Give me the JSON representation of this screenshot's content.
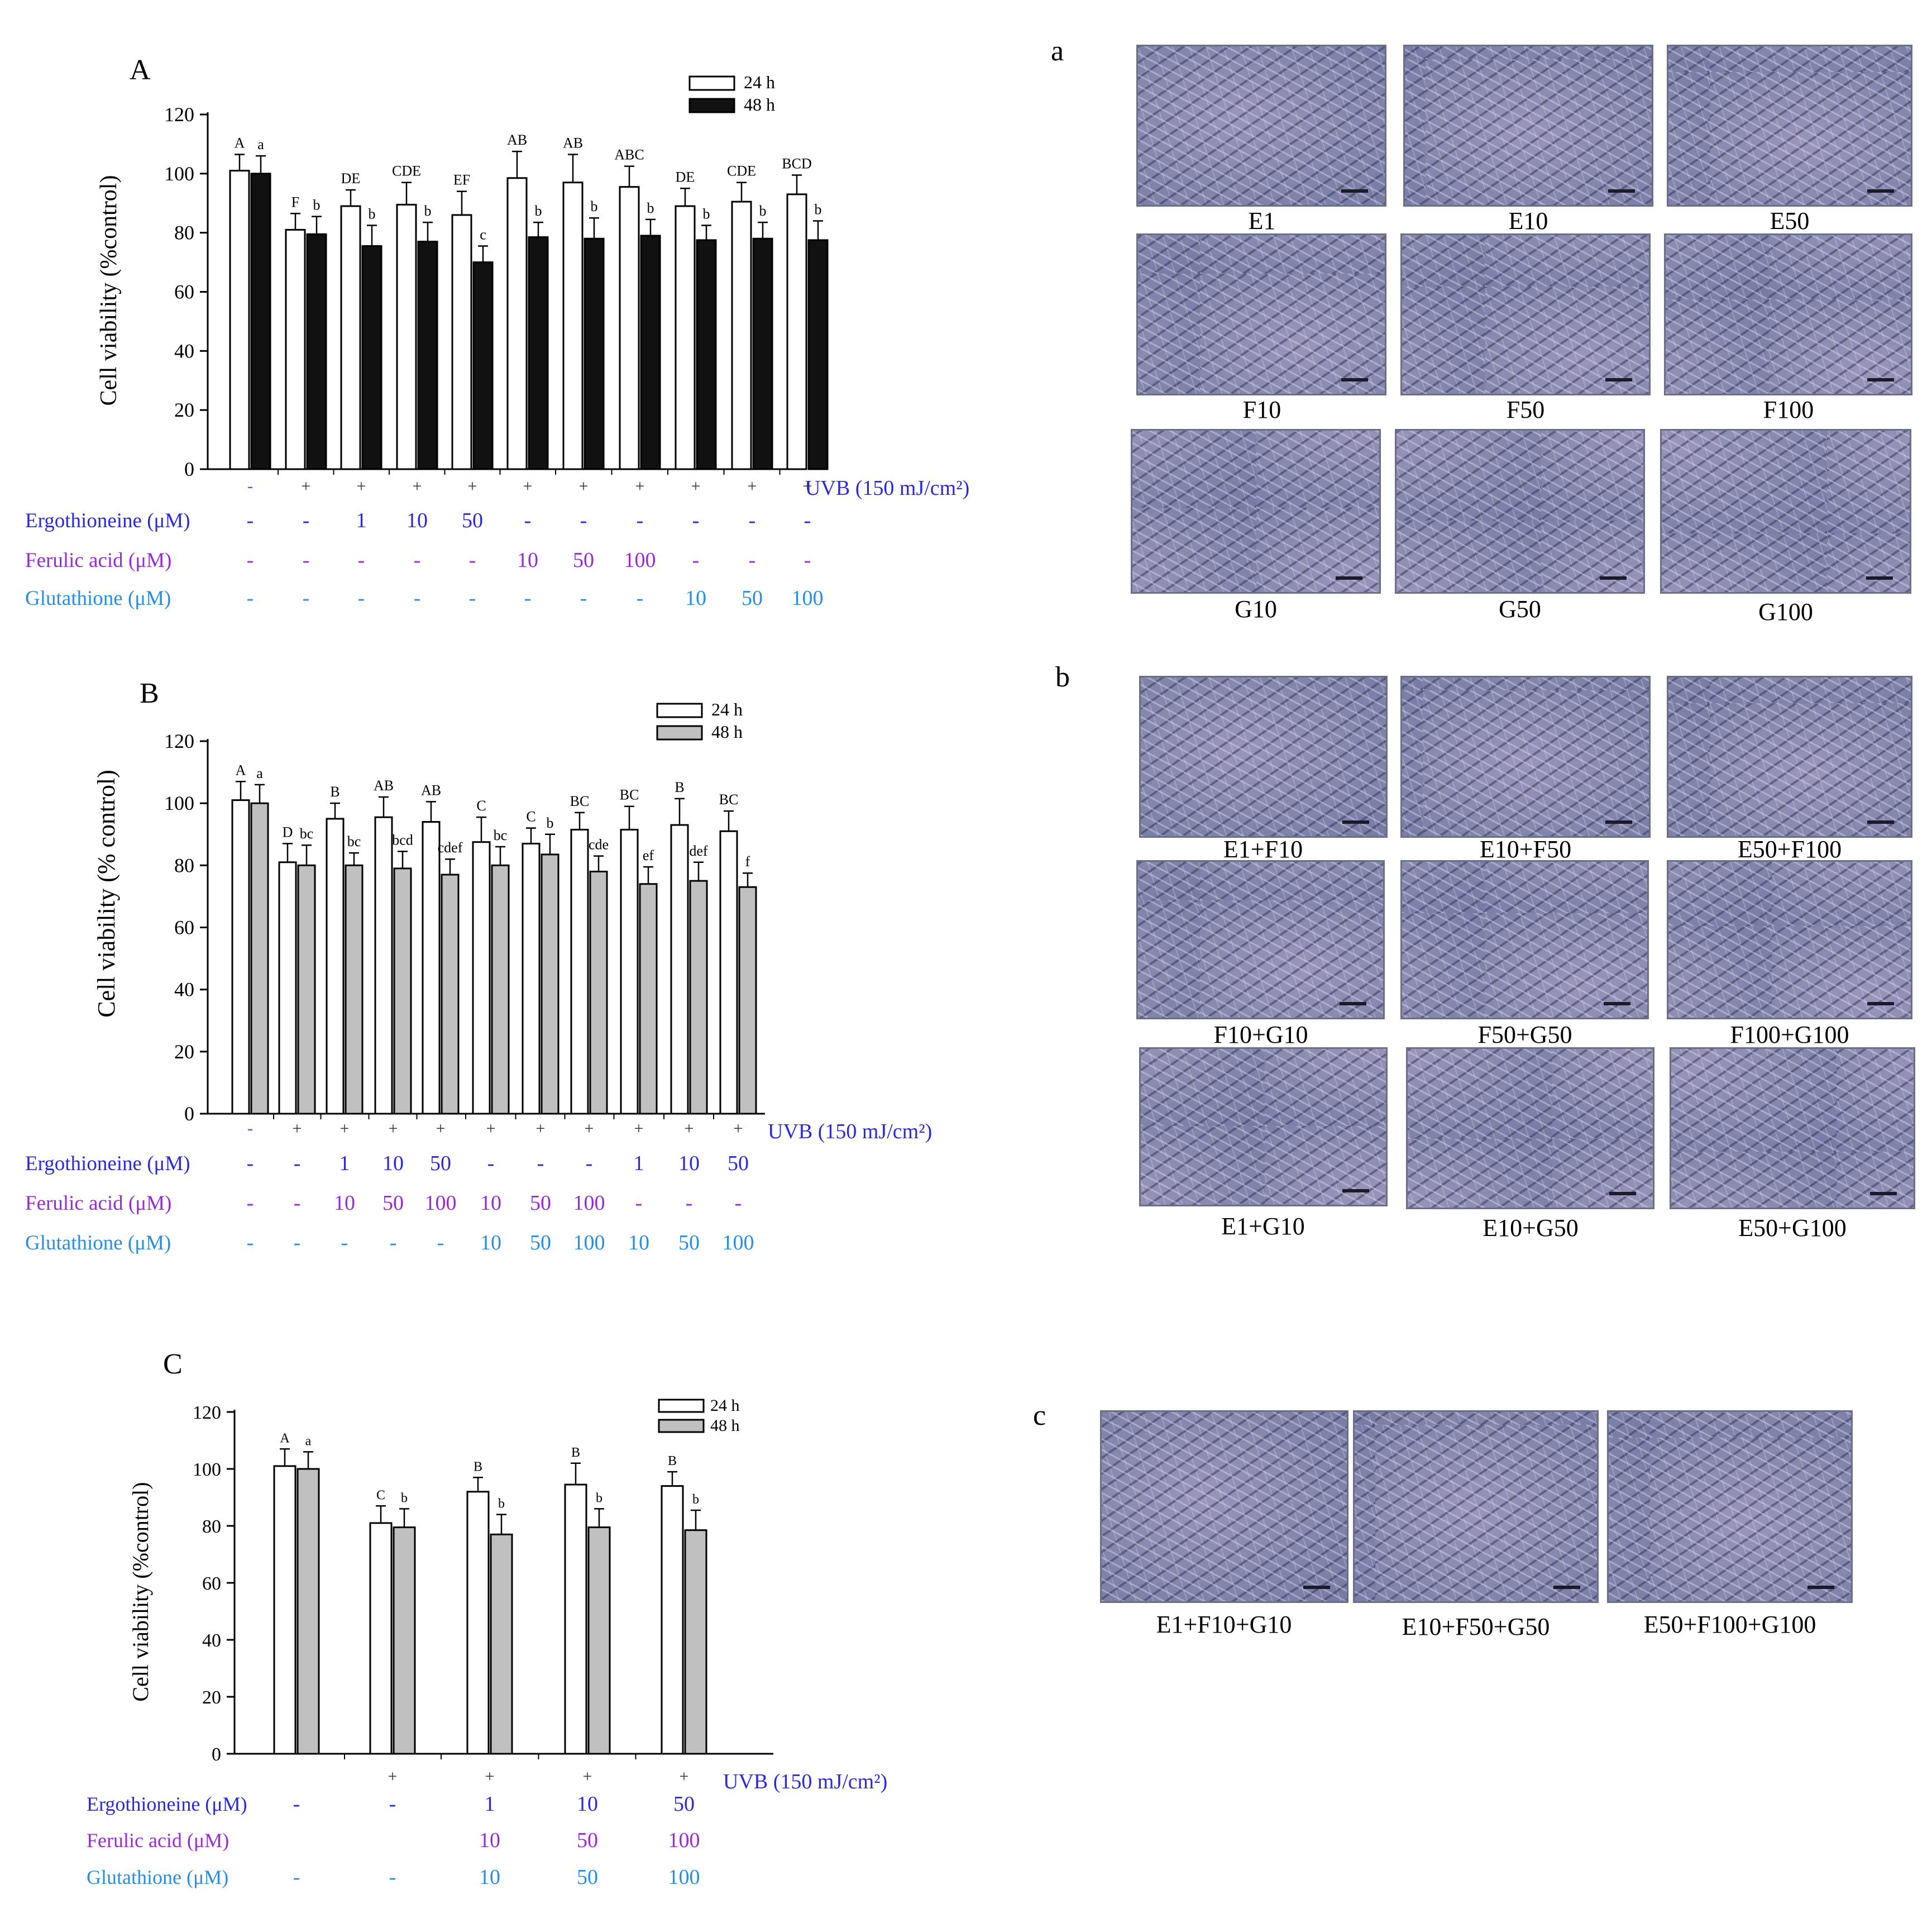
{
  "charts": [
    {
      "letter": "A",
      "ylabel": "Cell viability (%control)",
      "yticks": [
        "0",
        "20",
        "40",
        "60",
        "80",
        "100",
        "120"
      ],
      "legend": [
        "24 h",
        "48 h"
      ],
      "uvb_label": "UVB (150 mJ/cm²)",
      "uvb_marks": [
        "-",
        "+",
        "+",
        "+",
        "+",
        "+",
        "+",
        "+",
        "+",
        "+",
        "+"
      ],
      "rows": [
        {
          "label": "Ergothioneine (μM)",
          "color": "#2a2ad8",
          "cells": [
            "-",
            "-",
            "1",
            "10",
            "50",
            "-",
            "-",
            "-",
            "-",
            "-",
            "-"
          ]
        },
        {
          "label": "Ferulic acid (μM)",
          "color": "#9a2ad8",
          "cells": [
            "-",
            "-",
            "-",
            "-",
            "-",
            "10",
            "50",
            "100",
            "-",
            "-",
            "-"
          ]
        },
        {
          "label": "Glutathione (μM)",
          "color": "#2a8ee0",
          "cells": [
            "-",
            "-",
            "-",
            "-",
            "-",
            "-",
            "-",
            "-",
            "10",
            "50",
            "100"
          ]
        }
      ]
    },
    {
      "letter": "B",
      "ylabel": "Cell viability (% control)",
      "yticks": [
        "0",
        "20",
        "40",
        "60",
        "80",
        "100",
        "120"
      ],
      "legend": [
        "24 h",
        "48 h"
      ],
      "uvb_label": "UVB (150 mJ/cm²)",
      "uvb_marks": [
        "-",
        "+",
        "+",
        "+",
        "+",
        "+",
        "+",
        "+",
        "+",
        "+",
        "+"
      ],
      "rows": [
        {
          "label": "Ergothioneine (μM)",
          "color": "#2a2ad8",
          "cells": [
            "-",
            "-",
            "1",
            "10",
            "50",
            "-",
            "-",
            "-",
            "1",
            "10",
            "50"
          ]
        },
        {
          "label": "Ferulic acid (μM)",
          "color": "#9a2ad8",
          "cells": [
            "-",
            "-",
            "10",
            "50",
            "100",
            "10",
            "50",
            "100",
            "-",
            "-",
            "-"
          ]
        },
        {
          "label": "Glutathione (μM)",
          "color": "#2a8ee0",
          "cells": [
            "-",
            "-",
            "-",
            "-",
            "-",
            "10",
            "50",
            "100",
            "10",
            "50",
            "100"
          ]
        }
      ]
    },
    {
      "letter": "C",
      "ylabel": "Cell viability (%control)",
      "yticks": [
        "0",
        "20",
        "40",
        "60",
        "80",
        "100",
        "120"
      ],
      "legend": [
        "24 h",
        "48 h"
      ],
      "uvb_label": "UVB (150 mJ/cm²)",
      "uvb_marks": [
        "",
        "+",
        "+",
        "+",
        "+"
      ],
      "rows": [
        {
          "label": "Ergothioneine (μM)",
          "color": "#2a2ad8",
          "cells": [
            "-",
            "-",
            "1",
            "10",
            "50"
          ]
        },
        {
          "label": "Ferulic acid  (μM)",
          "color": "#9a2ad8",
          "cells": [
            "",
            "",
            "10",
            "50",
            "100"
          ]
        },
        {
          "label": "Glutathione (μM)",
          "color": "#2a8ee0",
          "cells": [
            "-",
            "-",
            "10",
            "50",
            "100"
          ]
        }
      ]
    }
  ],
  "chart_data": [
    {
      "type": "bar",
      "title": "A",
      "ylabel": "Cell viability (%control)",
      "ylim": [
        0,
        120
      ],
      "series": [
        {
          "name": "24 h",
          "color": "#ffffff",
          "values": [
            101,
            81,
            89,
            89.5,
            86,
            98.5,
            97,
            95.5,
            89,
            90.5,
            93
          ],
          "errors": [
            5.5,
            5.5,
            5.5,
            7.5,
            8,
            9,
            9.5,
            7,
            6,
            6.5,
            6.5
          ],
          "letters": [
            "A",
            "F",
            "DE",
            "CDE",
            "EF",
            "AB",
            "AB",
            "ABC",
            "DE",
            "CDE",
            "BCD"
          ]
        },
        {
          "name": "48 h",
          "color": "#111111",
          "values": [
            100,
            79.5,
            75.5,
            77,
            70,
            78.5,
            78,
            79,
            77.5,
            78,
            77.5
          ],
          "errors": [
            6,
            6,
            7,
            6.5,
            5.5,
            5,
            7,
            5.5,
            5,
            5.5,
            6.5
          ],
          "letters": [
            "a",
            "b",
            "b",
            "b",
            "c",
            "b",
            "b",
            "b",
            "b",
            "b",
            "b"
          ]
        }
      ]
    },
    {
      "type": "bar",
      "title": "B",
      "ylabel": "Cell viability (% control)",
      "ylim": [
        0,
        120
      ],
      "series": [
        {
          "name": "24 h",
          "color": "#ffffff",
          "values": [
            101,
            81,
            95,
            95.5,
            94,
            87.5,
            87,
            91.5,
            91.5,
            93,
            91
          ],
          "errors": [
            6,
            6,
            5,
            6.5,
            6.5,
            8,
            5,
            5.5,
            7.5,
            8.5,
            6.5
          ],
          "letters": [
            "A",
            "D",
            "B",
            "AB",
            "AB",
            "C",
            "C",
            "BC",
            "BC",
            "B",
            "BC"
          ]
        },
        {
          "name": "48 h",
          "color": "#c0c0c0",
          "values": [
            100,
            80,
            80,
            79,
            77,
            80,
            83.5,
            78,
            74,
            75,
            73
          ],
          "errors": [
            6,
            6.5,
            4,
            5.5,
            5,
            6,
            6.5,
            5,
            5.5,
            6,
            4.5
          ],
          "letters": [
            "a",
            "bc",
            "bc",
            "bcd",
            "cdef",
            "bc",
            "b",
            "cde",
            "ef",
            "def",
            "f"
          ]
        }
      ]
    },
    {
      "type": "bar",
      "title": "C",
      "ylabel": "Cell viability (%control)",
      "ylim": [
        0,
        120
      ],
      "series": [
        {
          "name": "24 h",
          "color": "#ffffff",
          "values": [
            101,
            81,
            92,
            94.5,
            94
          ],
          "errors": [
            6,
            6,
            5,
            7.5,
            5
          ],
          "letters": [
            "A",
            "C",
            "B",
            "B",
            "B"
          ]
        },
        {
          "name": "48 h",
          "color": "#c0c0c0",
          "values": [
            100,
            79.5,
            77,
            79.5,
            78.5
          ],
          "errors": [
            6,
            6.5,
            7,
            6.5,
            7
          ],
          "letters": [
            "a",
            "b",
            "b",
            "b",
            "b"
          ]
        }
      ]
    }
  ],
  "micrographs": {
    "a": {
      "letter": "a",
      "labels": [
        "E1",
        "E10",
        "E50",
        "F10",
        "F50",
        "F100",
        "G10",
        "G50",
        "G100"
      ]
    },
    "b": {
      "letter": "b",
      "labels": [
        "E1+F10",
        "E10+F50",
        "E50+F100",
        "F10+G10",
        "F50+G50",
        "F100+G100",
        "E1+G10",
        "E10+G50",
        "E50+G100"
      ]
    },
    "c": {
      "letter": "c",
      "labels": [
        "E1+F10+G10",
        "E10+F50+G50",
        "E50+F100+G100"
      ]
    }
  }
}
